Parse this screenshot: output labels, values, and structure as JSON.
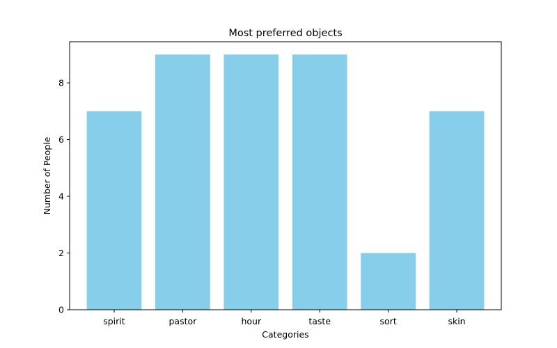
{
  "chart_data": {
    "type": "bar",
    "title": "Most preferred objects",
    "xlabel": "Categories",
    "ylabel": "Number of People",
    "categories": [
      "spirit",
      "pastor",
      "hour",
      "taste",
      "sort",
      "skin"
    ],
    "values": [
      7,
      9,
      9,
      9,
      2,
      7
    ],
    "yticks": [
      0,
      2,
      4,
      6,
      8
    ],
    "ylim": [
      0,
      9.45
    ],
    "bar_color": "#87ceeb",
    "grid": false,
    "legend": "none"
  }
}
